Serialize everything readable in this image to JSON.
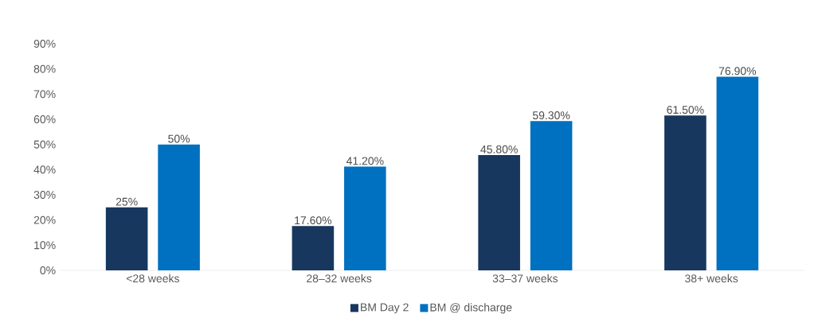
{
  "chart_data": {
    "type": "bar",
    "categories": [
      "<28 weeks",
      "28–32 weeks",
      "33–37 weeks",
      "38+ weeks"
    ],
    "series": [
      {
        "name": "BM Day 2",
        "color": "#17375e",
        "values": [
          25,
          17.6,
          45.8,
          61.5
        ],
        "value_labels": [
          "25%",
          "17.60%",
          "45.80%",
          "61.50%"
        ]
      },
      {
        "name": "BM @ discharge",
        "color": "#0070c0",
        "values": [
          50,
          41.2,
          59.3,
          76.9
        ],
        "value_labels": [
          "50%",
          "41.20%",
          "59.30%",
          "76.90%"
        ]
      }
    ],
    "ylim": [
      0,
      90
    ],
    "yticks": [
      {
        "value": 0,
        "label": "0%"
      },
      {
        "value": 10,
        "label": "10%"
      },
      {
        "value": 20,
        "label": "20%"
      },
      {
        "value": 30,
        "label": "30%"
      },
      {
        "value": 40,
        "label": "40%"
      },
      {
        "value": 50,
        "label": "50%"
      },
      {
        "value": 60,
        "label": "60%"
      },
      {
        "value": 70,
        "label": "70%"
      },
      {
        "value": 80,
        "label": "80%"
      },
      {
        "value": 90,
        "label": "90%"
      }
    ],
    "legend": "bottom"
  }
}
